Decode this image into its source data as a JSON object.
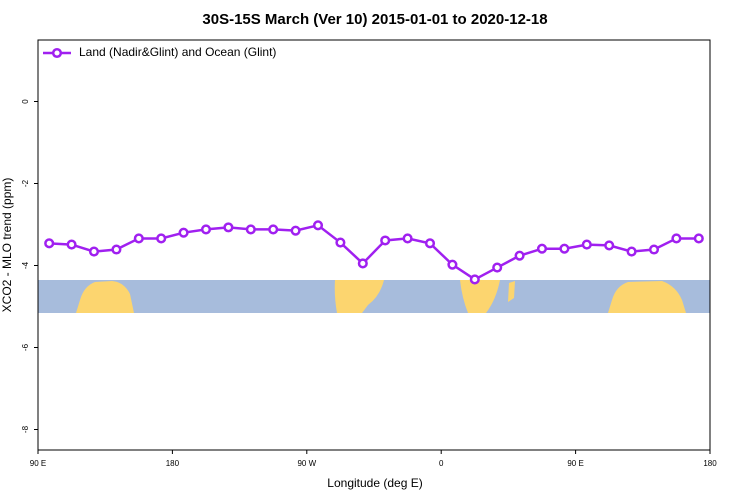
{
  "chart_data": {
    "type": "line",
    "title": "30S-15S March (Ver 10)   2015-01-01 to 2020-12-18",
    "xlabel": "Longitude (deg E)",
    "ylabel": "XCO2 - MLO trend (ppm)",
    "x": [
      97.5,
      112.5,
      127.5,
      142.5,
      157.5,
      172.5,
      187.5,
      202.5,
      217.5,
      232.5,
      247.5,
      262.5,
      277.5,
      292.5,
      307.5,
      322.5,
      337.5,
      352.5,
      367.5,
      382.5,
      397.5,
      412.5,
      427.5,
      442.5,
      457.5,
      472.5,
      487.5,
      502.5,
      517.5,
      532.5
    ],
    "series": [
      {
        "name": "Land (Nadir&Glint) and Ocean (Glint)",
        "color": "#a020f0",
        "values": [
          -3.46,
          -3.49,
          -3.66,
          -3.61,
          -3.34,
          -3.34,
          -3.2,
          -3.12,
          -3.07,
          -3.12,
          -3.12,
          -3.15,
          -3.02,
          -3.44,
          -3.95,
          -3.39,
          -3.34,
          -3.46,
          -3.98,
          -4.34,
          -4.05,
          -3.76,
          -3.59,
          -3.59,
          -3.49,
          -3.51,
          -3.66,
          -3.61,
          -3.34,
          -3.34
        ]
      }
    ],
    "xlim": [
      90,
      540
    ],
    "xticks": [
      {
        "value": 90,
        "label": "90 E"
      },
      {
        "value": 180,
        "label": "180"
      },
      {
        "value": 270,
        "label": "90 W"
      },
      {
        "value": 360,
        "label": "0"
      },
      {
        "value": 450,
        "label": "90 E"
      },
      {
        "value": 540,
        "label": "180"
      }
    ],
    "ylim": [
      -8.5,
      1.5
    ],
    "yticks": [
      0,
      -2,
      -4,
      -6,
      -8
    ],
    "legend": "top-left"
  }
}
